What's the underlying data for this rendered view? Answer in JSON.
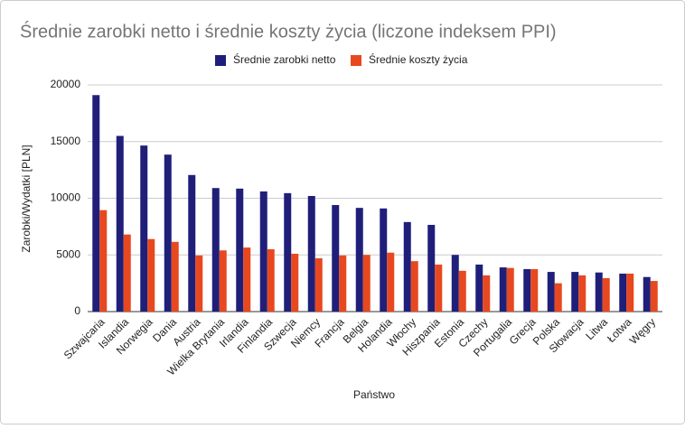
{
  "chart_data": {
    "type": "bar",
    "title": "Średnie zarobki netto i średnie koszty życia (liczone indeksem PPI)",
    "x_label": "Państwo",
    "y_label": "Zarobki/Wydatki [PLN]",
    "categories": [
      "Szwajcaria",
      "Islandia",
      "Norwegia",
      "Dania",
      "Austria",
      "Wielka Brytania",
      "Irlandia",
      "Finlandia",
      "Szwecja",
      "Niemcy",
      "Francja",
      "Belgia",
      "Holandia",
      "Włochy",
      "Hiszpania",
      "Estonia",
      "Czechy",
      "Portugalia",
      "Grecja",
      "Polska",
      "Słowacja",
      "Litwa",
      "Łotwa",
      "Węgry"
    ],
    "series": [
      {
        "name": "Średnie zarobki netto",
        "color": "#1f1f7a",
        "values": [
          19100,
          15500,
          14650,
          13850,
          12050,
          10900,
          10850,
          10600,
          10450,
          10200,
          9400,
          9150,
          9100,
          7900,
          7650,
          5000,
          4150,
          3900,
          3750,
          3500,
          3500,
          3450,
          3350,
          3050
        ]
      },
      {
        "name": "Średnie koszty życia",
        "color": "#e8481f",
        "values": [
          8950,
          6800,
          6400,
          6150,
          4950,
          5400,
          5650,
          5500,
          5100,
          4700,
          4950,
          5000,
          5200,
          4450,
          4150,
          3600,
          3200,
          3850,
          3750,
          2500,
          3200,
          2950,
          3350,
          2700
        ]
      }
    ],
    "ylim": [
      0,
      20000
    ],
    "yticks": [
      0,
      5000,
      10000,
      15000,
      20000
    ],
    "grid": true
  }
}
